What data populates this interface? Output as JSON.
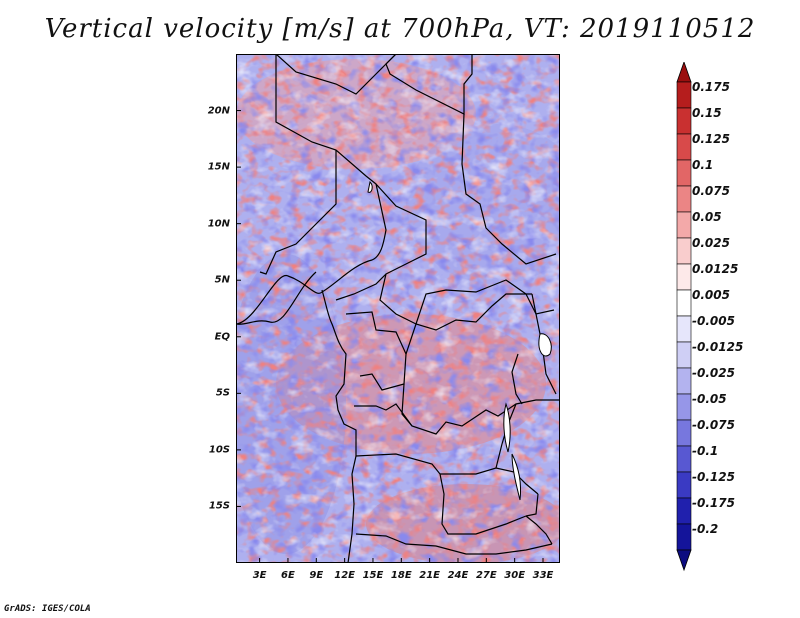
{
  "title": "Vertical velocity [m/s] at 700hPa, VT: 2019110512",
  "credit": "GrADS: IGES/COLA",
  "map": {
    "lat_labels": [
      {
        "label": "20N",
        "lat": 20
      },
      {
        "label": "15N",
        "lat": 15
      },
      {
        "label": "10N",
        "lat": 10
      },
      {
        "label": "5N",
        "lat": 5
      },
      {
        "label": "EQ",
        "lat": 0
      },
      {
        "label": "5S",
        "lat": -5
      },
      {
        "label": "10S",
        "lat": -10
      },
      {
        "label": "15S",
        "lat": -15
      }
    ],
    "lon_labels": [
      {
        "label": "3E",
        "lon": 3
      },
      {
        "label": "6E",
        "lon": 6
      },
      {
        "label": "9E",
        "lon": 9
      },
      {
        "label": "12E",
        "lon": 12
      },
      {
        "label": "15E",
        "lon": 15
      },
      {
        "label": "18E",
        "lon": 18
      },
      {
        "label": "21E",
        "lon": 21
      },
      {
        "label": "24E",
        "lon": 24
      },
      {
        "label": "27E",
        "lon": 27
      },
      {
        "label": "30E",
        "lon": 30
      },
      {
        "label": "33E",
        "lon": 33
      }
    ],
    "lon_range": [
      0.5,
      34.8
    ],
    "lat_range": [
      -20,
      25
    ],
    "field": "vertical velocity",
    "level": "700hPa"
  },
  "colorbar": {
    "labels": [
      "0.175",
      "0.15",
      "0.125",
      "0.1",
      "0.075",
      "0.05",
      "0.025",
      "0.0125",
      "0.005",
      "-0.005",
      "-0.0125",
      "-0.025",
      "-0.05",
      "-0.075",
      "-0.1",
      "-0.125",
      "-0.175",
      "-0.2"
    ],
    "colors": [
      "#9b0f0f",
      "#b51d1d",
      "#c93030",
      "#d84a4a",
      "#e26666",
      "#eb8585",
      "#f3a9a9",
      "#f9cdcd",
      "#fde9e9",
      "#ffffff",
      "#e6e6fb",
      "#cfcff5",
      "#b3b3ef",
      "#9696e8",
      "#7777de",
      "#5858d2",
      "#3a3ac3",
      "#2020ad",
      "#14149a",
      "#0c0c80"
    ]
  }
}
